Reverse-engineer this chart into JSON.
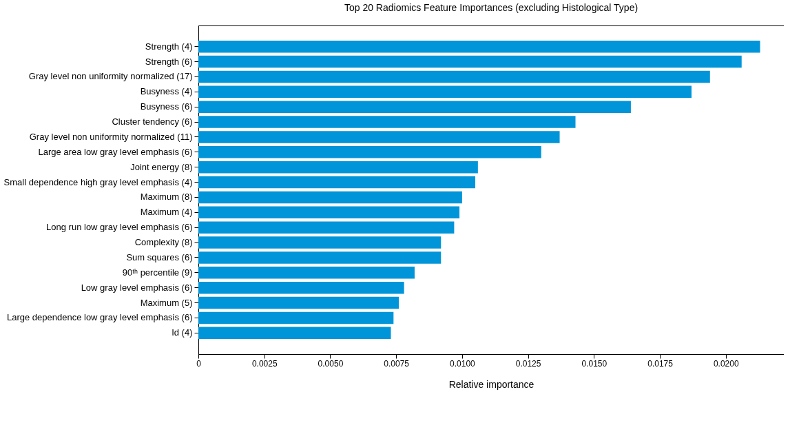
{
  "chart_data": {
    "type": "bar",
    "orientation": "horizontal",
    "title": "Top 20 Radiomics Feature Importances (excluding Histological Type)",
    "xlabel": "Relative importance",
    "categories": [
      "Strength (4)",
      "Strength (6)",
      "Gray level non uniformity normalized (17)",
      "Busyness (4)",
      "Busyness (6)",
      "Cluster tendency (6)",
      "Gray level non uniformity normalized (11)",
      "Large area low gray level emphasis (6)",
      "Joint energy (8)",
      "Small dependence high gray level emphasis (4)",
      "Maximum (8)",
      "Maximum (4)",
      "Long run low gray level emphasis (6)",
      "Complexity (8)",
      "Sum squares (6)",
      "90ᵗʰ percentile (9)",
      "Low gray level emphasis (6)",
      "Maximum (5)",
      "Large dependence low gray level emphasis (6)",
      "Id (4)"
    ],
    "values": [
      0.0213,
      0.0206,
      0.0194,
      0.0187,
      0.0164,
      0.0143,
      0.0137,
      0.013,
      0.0106,
      0.0105,
      0.01,
      0.0099,
      0.0097,
      0.0092,
      0.0092,
      0.0082,
      0.0078,
      0.0076,
      0.0074,
      0.0073
    ],
    "color": "#0095d9",
    "xlim": [
      0,
      0.0222
    ],
    "xticks": [
      0,
      {
        "value": 0.0025,
        "label": "0.0025"
      },
      {
        "value": 0.005,
        "label": "0.0050"
      },
      {
        "value": 0.0075,
        "label": "0.0075"
      },
      {
        "value": 0.01,
        "label": "0.0100"
      },
      {
        "value": 0.0125,
        "label": "0.0125"
      },
      {
        "value": 0.015,
        "label": "0.0150"
      },
      {
        "value": 0.0175,
        "label": "0.0175"
      },
      {
        "value": 0.02,
        "label": "0.0200"
      }
    ]
  }
}
